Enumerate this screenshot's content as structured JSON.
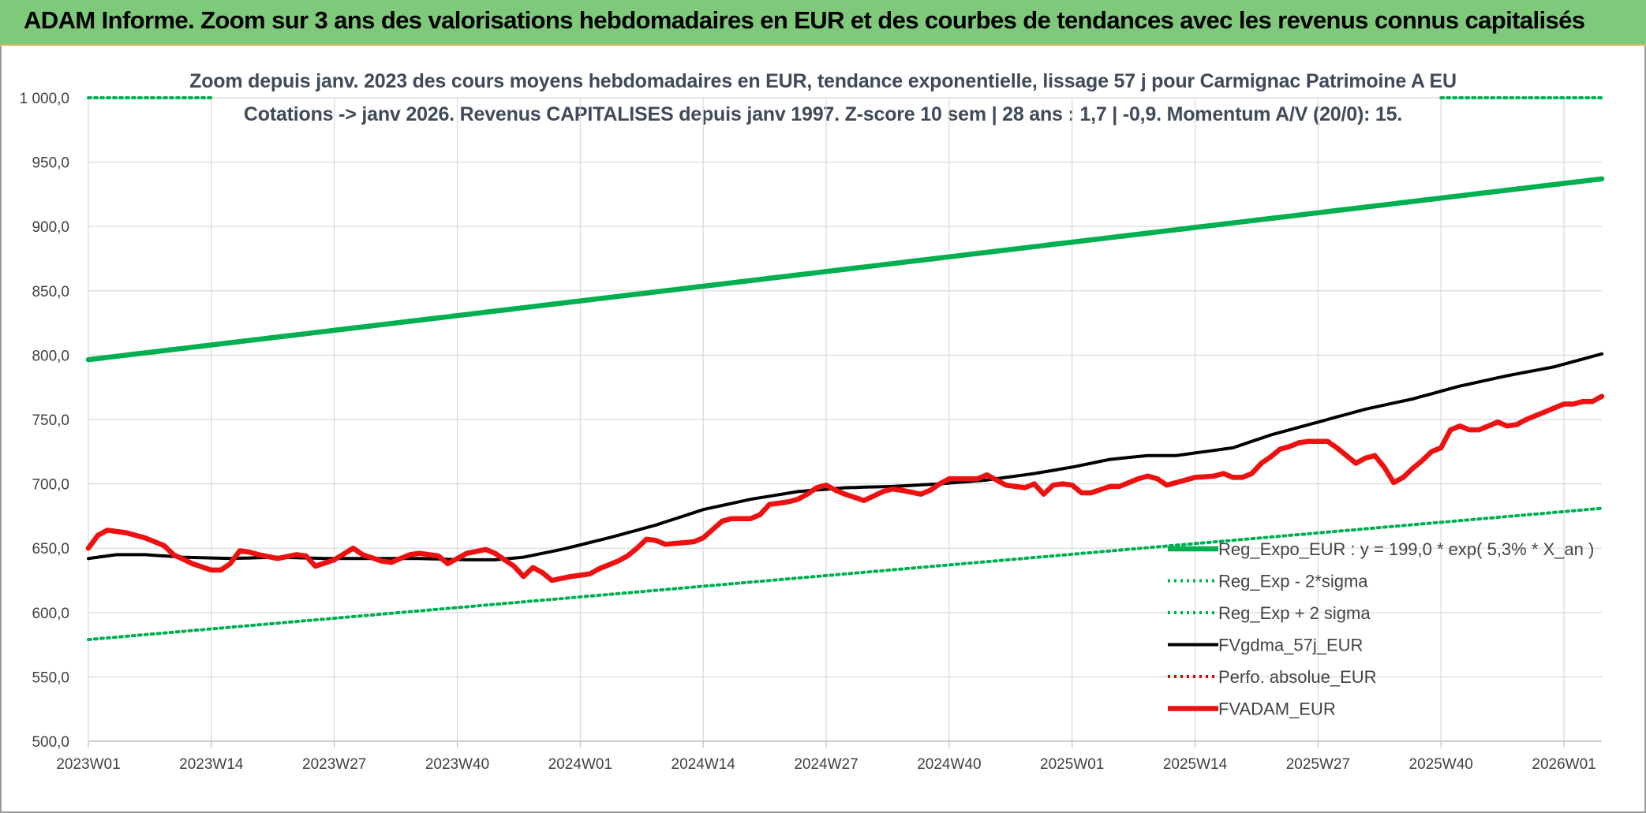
{
  "header": {
    "title": "ADAM Informe. Zoom sur 3 ans des valorisations hebdomadaires en EUR et des courbes de tendances avec les revenus connus capitalisés"
  },
  "chart_data": {
    "type": "line",
    "title_line1": "Zoom depuis janv. 2023 des cours moyens hebdomadaires en EUR, tendance exponentielle, lissage 57 j pour Carmignac Patrimoine A EU",
    "title_line2": "Cotations -> janv 2026. Revenus CAPITALISES depuis janv 1997. Z-score 10 sem | 28 ans : 1,7 | -0,9. Momentum A/V (20/0): 15.",
    "xlabel": "",
    "ylabel": "",
    "ylim": [
      500,
      1000
    ],
    "yticks": [
      500,
      550,
      600,
      650,
      700,
      750,
      800,
      850,
      900,
      950,
      1000
    ],
    "ytick_labels": [
      "500,0",
      "550,0",
      "600,0",
      "650,0",
      "700,0",
      "750,0",
      "800,0",
      "850,0",
      "900,0",
      "950,0",
      "1 000,0"
    ],
    "x_count": 161,
    "xticks": [
      0,
      13,
      26,
      39,
      52,
      65,
      78,
      91,
      104,
      117,
      130,
      143,
      156
    ],
    "xtick_labels": [
      "2023W01",
      "2023W14",
      "2023W27",
      "2023W40",
      "2024W01",
      "2024W14",
      "2024W27",
      "2024W40",
      "2025W01",
      "2025W14",
      "2025W27",
      "2025W40",
      "2026W01"
    ],
    "grid": true,
    "legend_position": "lower-right",
    "series": [
      {
        "name": "Reg_Expo_EUR : y = 199,0 * exp( 5,3% *  X_an )",
        "style": "solid-thick",
        "color": "#00b050",
        "anchors": [
          [
            0,
            796.5
          ],
          [
            160,
            937
          ]
        ]
      },
      {
        "name": "Reg_Exp - 2*sigma",
        "style": "dotted",
        "color": "#00b050",
        "anchors": [
          [
            0,
            579
          ],
          [
            160,
            681
          ]
        ]
      },
      {
        "name": "Reg_Exp + 2 sigma",
        "style": "dotted",
        "color": "#00b050",
        "anchors": [
          [
            0,
            1000
          ],
          [
            13,
            1000
          ],
          [
            143,
            1000
          ],
          [
            160,
            1000
          ]
        ],
        "visible_ranges": [
          [
            0,
            13
          ],
          [
            143,
            160
          ]
        ]
      },
      {
        "name": "FVgdma_57j_EUR",
        "style": "solid",
        "color": "#000000",
        "anchors": [
          [
            0,
            642
          ],
          [
            3,
            645
          ],
          [
            6,
            645
          ],
          [
            10,
            643
          ],
          [
            15,
            642
          ],
          [
            20,
            643
          ],
          [
            25,
            642
          ],
          [
            30,
            642
          ],
          [
            35,
            642
          ],
          [
            40,
            641
          ],
          [
            43,
            641
          ],
          [
            46,
            643
          ],
          [
            50,
            649
          ],
          [
            55,
            658
          ],
          [
            60,
            668
          ],
          [
            65,
            680
          ],
          [
            70,
            688
          ],
          [
            75,
            694
          ],
          [
            80,
            697
          ],
          [
            85,
            698
          ],
          [
            90,
            700
          ],
          [
            95,
            703
          ],
          [
            100,
            708
          ],
          [
            104,
            713
          ],
          [
            108,
            719
          ],
          [
            112,
            722
          ],
          [
            115,
            722
          ],
          [
            118,
            725
          ],
          [
            121,
            728
          ],
          [
            125,
            738
          ],
          [
            130,
            748
          ],
          [
            135,
            758
          ],
          [
            140,
            766
          ],
          [
            145,
            776
          ],
          [
            150,
            784
          ],
          [
            155,
            791
          ],
          [
            160,
            801
          ]
        ]
      },
      {
        "name": "Perfo. absolue_EUR",
        "style": "dotted",
        "color": "#e00000",
        "anchors": []
      },
      {
        "name": "FVADAM_EUR",
        "style": "solid-thick",
        "color": "#ee1111",
        "anchors": [
          [
            0,
            650
          ],
          [
            1,
            660
          ],
          [
            2,
            664
          ],
          [
            4,
            662
          ],
          [
            6,
            658
          ],
          [
            8,
            652
          ],
          [
            9,
            645
          ],
          [
            11,
            638
          ],
          [
            13,
            633
          ],
          [
            14,
            633
          ],
          [
            15,
            638
          ],
          [
            16,
            648
          ],
          [
            17,
            647
          ],
          [
            18,
            645
          ],
          [
            20,
            642
          ],
          [
            22,
            645
          ],
          [
            23,
            644
          ],
          [
            24,
            636
          ],
          [
            26,
            641
          ],
          [
            28,
            650
          ],
          [
            29,
            645
          ],
          [
            31,
            640
          ],
          [
            32,
            639
          ],
          [
            34,
            645
          ],
          [
            35,
            646
          ],
          [
            37,
            644
          ],
          [
            38,
            638
          ],
          [
            40,
            646
          ],
          [
            42,
            649
          ],
          [
            43,
            646
          ],
          [
            45,
            636
          ],
          [
            46,
            628
          ],
          [
            47,
            635
          ],
          [
            48,
            631
          ],
          [
            49,
            625
          ],
          [
            51,
            628
          ],
          [
            53,
            630
          ],
          [
            54,
            634
          ],
          [
            56,
            640
          ],
          [
            57,
            644
          ],
          [
            58,
            650
          ],
          [
            59,
            657
          ],
          [
            60,
            656
          ],
          [
            61,
            653
          ],
          [
            64,
            655
          ],
          [
            65,
            658
          ],
          [
            67,
            671
          ],
          [
            68,
            673
          ],
          [
            70,
            673
          ],
          [
            71,
            676
          ],
          [
            72,
            684
          ],
          [
            74,
            686
          ],
          [
            75,
            688
          ],
          [
            76,
            692
          ],
          [
            77,
            697
          ],
          [
            78,
            699
          ],
          [
            79,
            695
          ],
          [
            80,
            692
          ],
          [
            82,
            687
          ],
          [
            84,
            694
          ],
          [
            85,
            696
          ],
          [
            86,
            695
          ],
          [
            88,
            692
          ],
          [
            89,
            695
          ],
          [
            90,
            700
          ],
          [
            91,
            704
          ],
          [
            92,
            704
          ],
          [
            94,
            704
          ],
          [
            95,
            707
          ],
          [
            96,
            703
          ],
          [
            97,
            699
          ],
          [
            99,
            697
          ],
          [
            100,
            700
          ],
          [
            101,
            692
          ],
          [
            102,
            699
          ],
          [
            103,
            700
          ],
          [
            104,
            699
          ],
          [
            105,
            693
          ],
          [
            106,
            693
          ],
          [
            108,
            698
          ],
          [
            109,
            698
          ],
          [
            111,
            704
          ],
          [
            112,
            706
          ],
          [
            113,
            704
          ],
          [
            114,
            699
          ],
          [
            116,
            703
          ],
          [
            117,
            705
          ],
          [
            119,
            706
          ],
          [
            120,
            708
          ],
          [
            121,
            705
          ],
          [
            122,
            705
          ],
          [
            123,
            708
          ],
          [
            124,
            716
          ],
          [
            125,
            721
          ],
          [
            126,
            727
          ],
          [
            127,
            729
          ],
          [
            128,
            732
          ],
          [
            129,
            733
          ],
          [
            130,
            733
          ],
          [
            131,
            733
          ],
          [
            132,
            728
          ],
          [
            133,
            722
          ],
          [
            134,
            716
          ],
          [
            135,
            720
          ],
          [
            136,
            722
          ],
          [
            137,
            713
          ],
          [
            138,
            701
          ],
          [
            139,
            705
          ],
          [
            140,
            712
          ],
          [
            141,
            718
          ],
          [
            142,
            725
          ],
          [
            143,
            728
          ],
          [
            144,
            742
          ],
          [
            145,
            745
          ],
          [
            146,
            742
          ],
          [
            147,
            742
          ],
          [
            148,
            745
          ],
          [
            149,
            748
          ],
          [
            150,
            745
          ],
          [
            151,
            746
          ],
          [
            152,
            750
          ],
          [
            153,
            753
          ],
          [
            154,
            756
          ],
          [
            155,
            759
          ],
          [
            156,
            762
          ],
          [
            157,
            762
          ],
          [
            158,
            764
          ],
          [
            159,
            764
          ],
          [
            160,
            768
          ]
        ]
      }
    ]
  }
}
